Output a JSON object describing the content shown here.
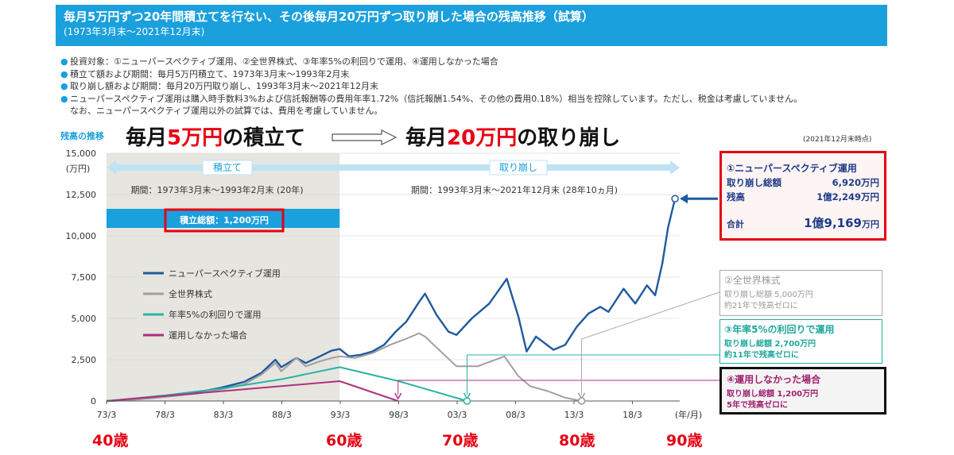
{
  "header": {
    "title": "毎月5万円ずつ20年間積立てを行ない、その後毎月20万円ずつ取り崩した場合の残高推移（試算）",
    "subtitle": "(1973年3月末〜2021年12月末)"
  },
  "notes": [
    "投資対象：①ニューパースペクティブ運用、②全世界株式、③年率5%の利回りで運用、④運用しなかった場合",
    "積立て額および期間：毎月5万円積立て、1973年3月末〜1993年2月末",
    "取り崩し額および期間：毎月20万円取り崩し、1993年3月末〜2021年12月末",
    "ニューパースペクティブ運用は購入時手数料3%および信託報酬等の費用年率1.72%（信託報酬1.54%、その他の費用0.18%）相当を控除しています。ただし、税金は考慮していません。"
  ],
  "note_continuation": "なお、ニューパースペクティブ運用以外の試算では、費用を考慮していません。",
  "headline": {
    "ylabel_caption": "残高の推移",
    "left_pre": "毎月",
    "left_red": "5万円",
    "left_post": "の積立て",
    "right_pre": "毎月",
    "right_red": "20万円",
    "right_post": "の取り崩し",
    "as_of": "(2021年12月末時点)"
  },
  "phases": {
    "accum_label": "積立て",
    "accum_period": "期間：1973年3月末〜1993年2月末 (20年)",
    "accum_total": "積立総額：1,200万円",
    "draw_label": "取り崩し",
    "draw_period": "期間：1993年3月末〜2021年12月末 (28年10ヵ月)"
  },
  "ages": [
    "40歳",
    "60歳",
    "70歳",
    "80歳",
    "90歳"
  ],
  "boxes": {
    "np": {
      "title": "①ニューパースペクティブ運用",
      "row1_label": "取り崩し総額",
      "row1_value": "6,920万円",
      "row2_label": "残高",
      "row2_value": "1億2,249万円",
      "total_label": "合計",
      "total_value": "1億9,169",
      "total_unit": "万円"
    },
    "world": {
      "title": "②全世界株式",
      "line1": "取り崩し総額 5,000万円",
      "line2": "約21年で残高ゼロに"
    },
    "five": {
      "title": "③年率5%の利回りで運用",
      "line1": "取り崩し総額 2,700万円",
      "line2": "約11年で残高ゼロに"
    },
    "none": {
      "title": "④運用しなかった場合",
      "line1": "取り崩し総額 1,200万円",
      "line2": "5年で残高ゼロに"
    }
  },
  "colors": {
    "np": "#1f5a9e",
    "world": "#a0a0a0",
    "five": "#2ab3a6",
    "none": "#b0307e",
    "accent": "#1aa0dc",
    "red": "#e60012",
    "shade": "#e6e5e0"
  },
  "chart_data": {
    "type": "line",
    "ylabel": "(万円)",
    "xlabel": "(年/月)",
    "ylim": [
      0,
      15000
    ],
    "xlim": [
      1973.25,
      2022.3
    ],
    "yticks": [
      0,
      2500,
      5000,
      7500,
      10000,
      12500,
      15000
    ],
    "ytick_labels": [
      "0",
      "2,500",
      "5,000",
      "7,500",
      "10,000",
      "12,500",
      "15,000"
    ],
    "xticks": [
      1973.25,
      1978.25,
      1983.25,
      1988.25,
      1993.25,
      1998.25,
      2003.25,
      2008.25,
      2013.25,
      2018.25
    ],
    "xtick_labels": [
      "73/3",
      "78/3",
      "83/3",
      "88/3",
      "93/3",
      "98/3",
      "03/3",
      "08/3",
      "13/3",
      "18/3"
    ],
    "series": [
      {
        "name": "ニューパースペクティブ運用",
        "points": [
          [
            1973.25,
            0
          ],
          [
            1975,
            60
          ],
          [
            1977,
            180
          ],
          [
            1979,
            330
          ],
          [
            1981,
            520
          ],
          [
            1983,
            800
          ],
          [
            1985,
            1150
          ],
          [
            1986.5,
            1700
          ],
          [
            1987.7,
            2500
          ],
          [
            1988.2,
            2050
          ],
          [
            1989.5,
            2600
          ],
          [
            1990.3,
            2300
          ],
          [
            1991.5,
            2700
          ],
          [
            1992.5,
            3050
          ],
          [
            1993.2,
            3150
          ],
          [
            1994,
            2700
          ],
          [
            1995,
            2800
          ],
          [
            1996,
            3000
          ],
          [
            1997,
            3400
          ],
          [
            1998,
            4200
          ],
          [
            1998.9,
            4800
          ],
          [
            2000,
            6000
          ],
          [
            2000.5,
            6500
          ],
          [
            2001.5,
            5200
          ],
          [
            2002.5,
            4200
          ],
          [
            2003.2,
            4000
          ],
          [
            2004.5,
            5000
          ],
          [
            2006,
            5900
          ],
          [
            2007.5,
            7400
          ],
          [
            2008.5,
            5100
          ],
          [
            2009.2,
            3000
          ],
          [
            2010,
            3900
          ],
          [
            2011.5,
            3100
          ],
          [
            2012.5,
            3400
          ],
          [
            2013.5,
            4500
          ],
          [
            2014.5,
            5300
          ],
          [
            2015.5,
            5700
          ],
          [
            2016.2,
            5400
          ],
          [
            2017.5,
            6800
          ],
          [
            2018.5,
            5900
          ],
          [
            2019.5,
            7000
          ],
          [
            2020.2,
            6400
          ],
          [
            2020.8,
            8300
          ],
          [
            2021.3,
            10500
          ],
          [
            2021.9,
            12249
          ]
        ]
      },
      {
        "name": "全世界株式",
        "points": [
          [
            1973.25,
            0
          ],
          [
            1975,
            50
          ],
          [
            1977,
            160
          ],
          [
            1979,
            300
          ],
          [
            1981,
            450
          ],
          [
            1983,
            700
          ],
          [
            1985,
            1000
          ],
          [
            1986.5,
            1600
          ],
          [
            1987.7,
            2300
          ],
          [
            1988.2,
            1800
          ],
          [
            1989.5,
            2600
          ],
          [
            1990.3,
            2100
          ],
          [
            1991.5,
            2400
          ],
          [
            1992.5,
            2600
          ],
          [
            1993.2,
            2700
          ],
          [
            1994.5,
            2600
          ],
          [
            1996,
            2900
          ],
          [
            1997.5,
            3400
          ],
          [
            1999,
            3800
          ],
          [
            2000,
            4100
          ],
          [
            2000.5,
            3900
          ],
          [
            2002,
            2900
          ],
          [
            2003.2,
            2100
          ],
          [
            2005,
            2100
          ],
          [
            2007.3,
            2700
          ],
          [
            2008.5,
            1500
          ],
          [
            2009.5,
            900
          ],
          [
            2011,
            600
          ],
          [
            2012.5,
            200
          ],
          [
            2013.9,
            0
          ]
        ]
      },
      {
        "name": "年率5%の利回りで運用",
        "points": [
          [
            1973.25,
            0
          ],
          [
            1978.25,
            340
          ],
          [
            1983.25,
            770
          ],
          [
            1988.25,
            1320
          ],
          [
            1993.2,
            2050
          ],
          [
            1998.25,
            1200
          ],
          [
            2004.1,
            0
          ]
        ]
      },
      {
        "name": "運用しなかった場合",
        "points": [
          [
            1973.25,
            0
          ],
          [
            1993.2,
            1200
          ],
          [
            1998.2,
            0
          ]
        ]
      }
    ],
    "endpoints": {
      "none_zero_year": 1998.2,
      "five_zero_year": 2004.1,
      "world_zero_year": 2013.9,
      "np_end_year": 2021.9,
      "np_end_value": 12249
    }
  }
}
